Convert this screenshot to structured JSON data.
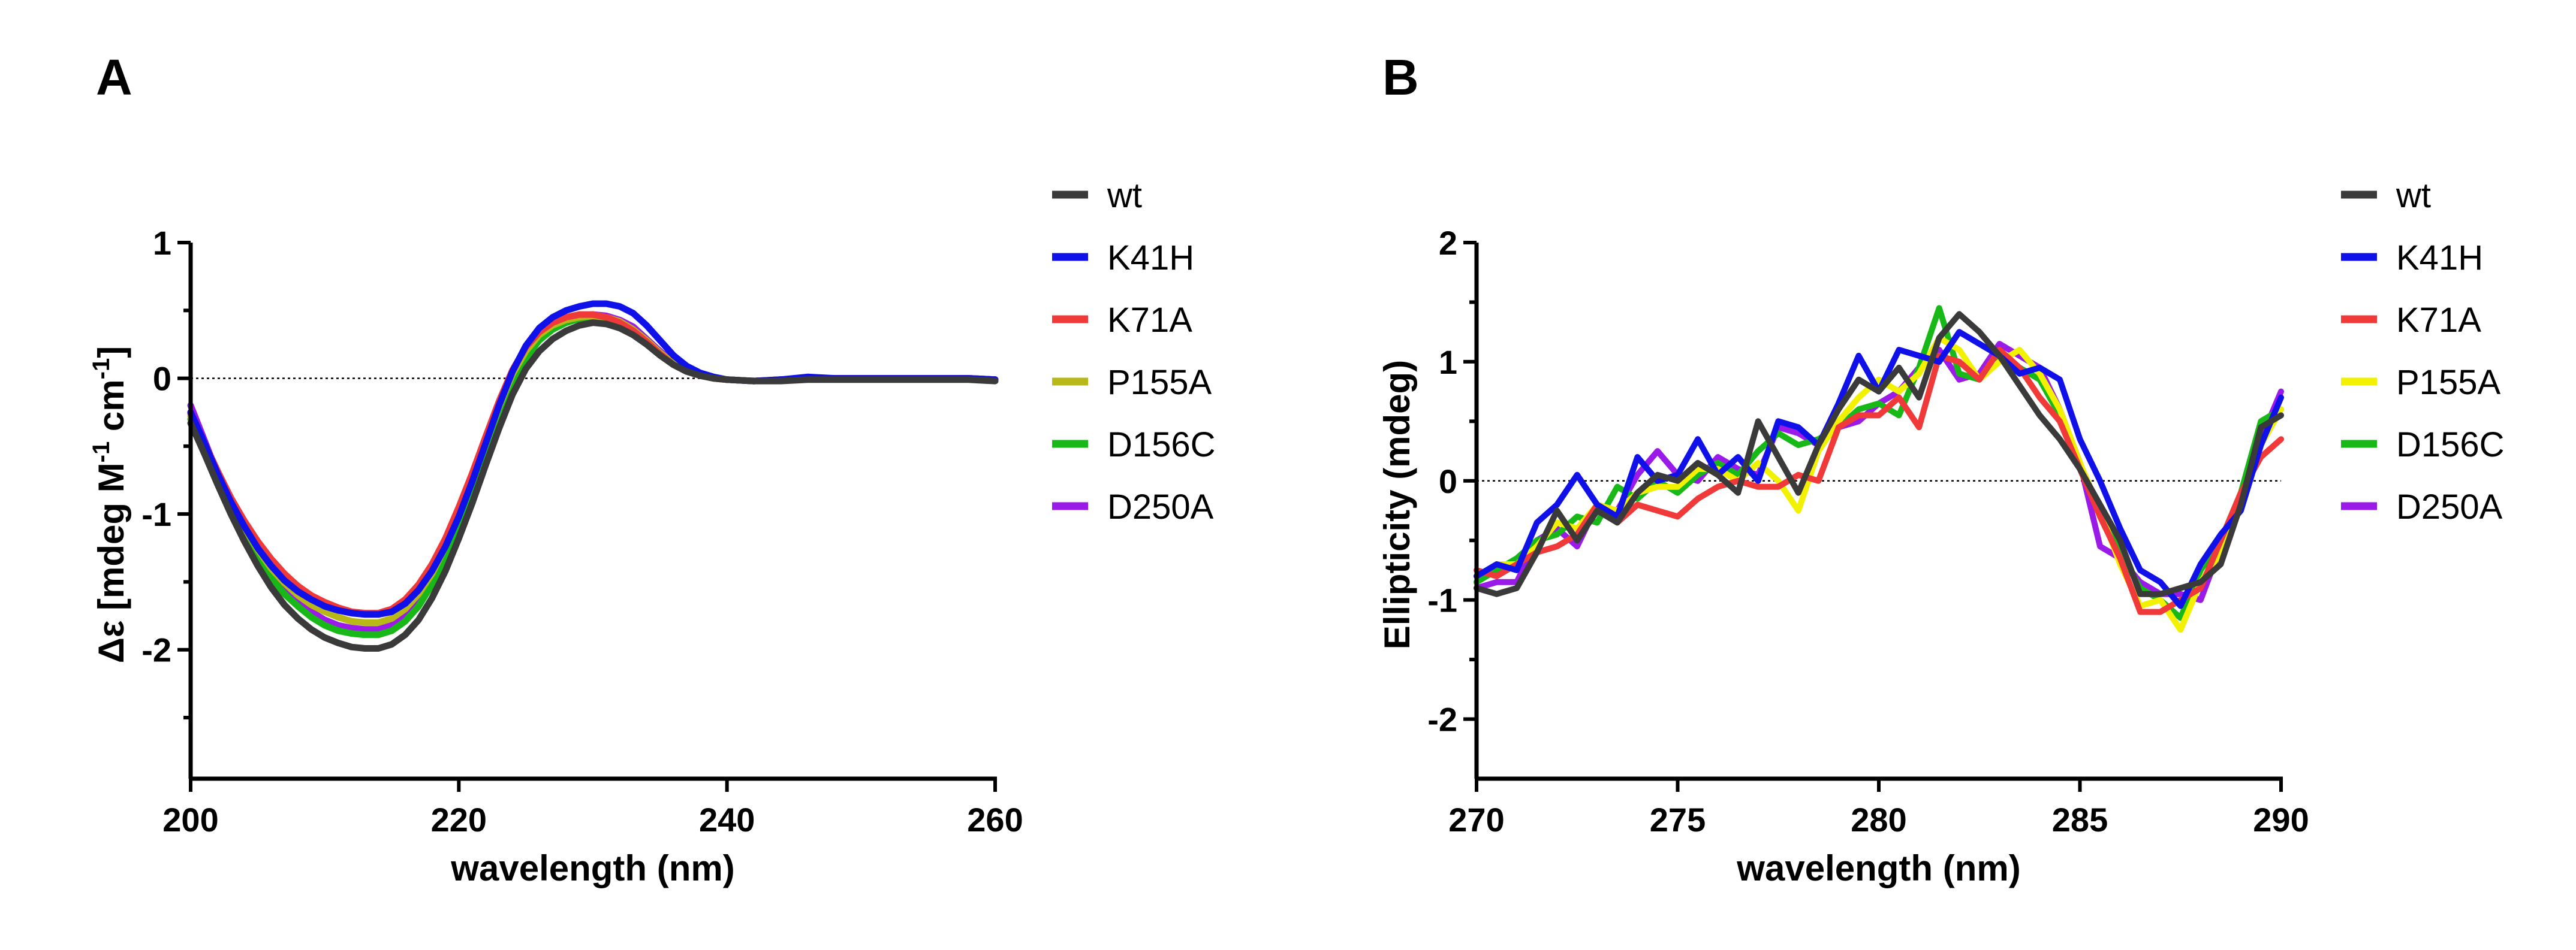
{
  "colors": {
    "wt": "#3a3a3a",
    "K41H": "#1010e8",
    "K71A": "#f03a3a",
    "P155A_A": "#b8b818",
    "P155A_B": "#f2f200",
    "D156C": "#18b818",
    "D250A": "#9a1ae8"
  },
  "chart_data": [
    {
      "panel": "A",
      "type": "line",
      "xlabel": "wavelength (nm)",
      "ylabel_parts": [
        "Δε [mdeg M",
        "-1",
        " cm",
        "-1",
        "]"
      ],
      "xlim": [
        200,
        260
      ],
      "ylim": [
        -2.95,
        1.0
      ],
      "xticks": [
        200,
        220,
        240,
        260
      ],
      "yticks": [
        1,
        0,
        -1,
        -2
      ],
      "ytick_labels": [
        "1",
        "0",
        "-1",
        "-2"
      ],
      "minor_yticks": [
        0.5,
        -0.5,
        -1.5,
        -2.5
      ],
      "reference_line_y": 0,
      "legend": [
        "wt",
        "K41H",
        "K71A",
        "P155A",
        "D156C",
        "D250A"
      ],
      "x": [
        200,
        201,
        202,
        203,
        204,
        205,
        206,
        207,
        208,
        209,
        210,
        211,
        212,
        213,
        214,
        215,
        216,
        217,
        218,
        219,
        220,
        221,
        222,
        223,
        224,
        225,
        226,
        227,
        228,
        229,
        230,
        231,
        232,
        233,
        234,
        235,
        236,
        237,
        238,
        239,
        240,
        242,
        244,
        246,
        248,
        250,
        252,
        254,
        256,
        258,
        260
      ],
      "series": [
        {
          "name": "wt",
          "color_key": "wt",
          "values": [
            -0.33,
            -0.55,
            -0.78,
            -1.0,
            -1.2,
            -1.38,
            -1.54,
            -1.67,
            -1.77,
            -1.85,
            -1.91,
            -1.95,
            -1.98,
            -1.99,
            -1.99,
            -1.96,
            -1.89,
            -1.78,
            -1.62,
            -1.42,
            -1.18,
            -0.92,
            -0.64,
            -0.37,
            -0.12,
            0.07,
            0.2,
            0.29,
            0.35,
            0.39,
            0.41,
            0.4,
            0.37,
            0.32,
            0.25,
            0.17,
            0.1,
            0.05,
            0.02,
            0.0,
            -0.01,
            -0.02,
            -0.02,
            -0.01,
            -0.01,
            -0.01,
            -0.01,
            -0.01,
            -0.01,
            -0.01,
            -0.02
          ]
        },
        {
          "name": "K41H",
          "color_key": "K41H",
          "values": [
            -0.25,
            -0.47,
            -0.7,
            -0.91,
            -1.09,
            -1.25,
            -1.38,
            -1.49,
            -1.57,
            -1.63,
            -1.68,
            -1.71,
            -1.73,
            -1.74,
            -1.74,
            -1.72,
            -1.66,
            -1.56,
            -1.42,
            -1.24,
            -1.02,
            -0.76,
            -0.48,
            -0.2,
            0.05,
            0.24,
            0.37,
            0.45,
            0.5,
            0.53,
            0.55,
            0.55,
            0.53,
            0.48,
            0.39,
            0.28,
            0.17,
            0.09,
            0.04,
            0.01,
            -0.01,
            -0.02,
            -0.01,
            0.01,
            0.0,
            0.0,
            0.0,
            0.0,
            0.0,
            0.0,
            -0.01
          ]
        },
        {
          "name": "K71A",
          "color_key": "K71A",
          "values": [
            -0.26,
            -0.47,
            -0.68,
            -0.88,
            -1.05,
            -1.2,
            -1.33,
            -1.44,
            -1.53,
            -1.6,
            -1.65,
            -1.69,
            -1.72,
            -1.73,
            -1.73,
            -1.7,
            -1.63,
            -1.52,
            -1.37,
            -1.18,
            -0.95,
            -0.7,
            -0.43,
            -0.17,
            0.06,
            0.23,
            0.34,
            0.41,
            0.45,
            0.47,
            0.47,
            0.45,
            0.41,
            0.35,
            0.27,
            0.18,
            0.1,
            0.05,
            0.02,
            0.0,
            -0.01,
            -0.02,
            -0.01,
            0.0,
            0.0,
            0.0,
            0.0,
            0.0,
            0.0,
            0.0,
            -0.01
          ]
        },
        {
          "name": "P155A",
          "color_key": "P155A_A",
          "values": [
            -0.28,
            -0.5,
            -0.72,
            -0.92,
            -1.1,
            -1.26,
            -1.4,
            -1.51,
            -1.6,
            -1.67,
            -1.72,
            -1.76,
            -1.79,
            -1.8,
            -1.8,
            -1.77,
            -1.7,
            -1.59,
            -1.44,
            -1.24,
            -1.01,
            -0.75,
            -0.48,
            -0.21,
            0.03,
            0.2,
            0.32,
            0.39,
            0.43,
            0.45,
            0.46,
            0.45,
            0.42,
            0.36,
            0.28,
            0.19,
            0.11,
            0.06,
            0.02,
            0.0,
            -0.01,
            -0.02,
            -0.01,
            0.0,
            0.0,
            0.0,
            0.0,
            0.0,
            0.0,
            0.0,
            -0.01
          ]
        },
        {
          "name": "D156C",
          "color_key": "D156C",
          "values": [
            -0.3,
            -0.52,
            -0.75,
            -0.96,
            -1.15,
            -1.32,
            -1.47,
            -1.59,
            -1.68,
            -1.76,
            -1.82,
            -1.86,
            -1.88,
            -1.89,
            -1.89,
            -1.86,
            -1.79,
            -1.68,
            -1.52,
            -1.32,
            -1.08,
            -0.82,
            -0.54,
            -0.27,
            -0.03,
            0.15,
            0.28,
            0.36,
            0.41,
            0.44,
            0.45,
            0.44,
            0.41,
            0.36,
            0.28,
            0.19,
            0.11,
            0.06,
            0.02,
            0.0,
            -0.01,
            -0.02,
            -0.01,
            0.0,
            0.0,
            0.0,
            0.0,
            0.0,
            0.0,
            0.0,
            -0.01
          ]
        },
        {
          "name": "D250A",
          "color_key": "D250A",
          "values": [
            -0.2,
            -0.45,
            -0.7,
            -0.93,
            -1.13,
            -1.3,
            -1.44,
            -1.56,
            -1.65,
            -1.72,
            -1.78,
            -1.82,
            -1.84,
            -1.85,
            -1.85,
            -1.82,
            -1.75,
            -1.64,
            -1.49,
            -1.29,
            -1.06,
            -0.8,
            -0.52,
            -0.25,
            -0.01,
            0.17,
            0.3,
            0.38,
            0.43,
            0.46,
            0.47,
            0.46,
            0.43,
            0.38,
            0.29,
            0.2,
            0.12,
            0.06,
            0.02,
            0.0,
            -0.01,
            -0.02,
            -0.01,
            0.0,
            0.0,
            0.0,
            0.0,
            0.0,
            0.0,
            0.0,
            -0.01
          ]
        }
      ]
    },
    {
      "panel": "B",
      "type": "line",
      "xlabel": "wavelength (nm)",
      "ylabel": "Ellipticity (mdeg)",
      "xlim": [
        270,
        290
      ],
      "ylim": [
        -2.5,
        2.0
      ],
      "xticks": [
        270,
        275,
        280,
        285,
        290
      ],
      "yticks": [
        2,
        1,
        0,
        -1,
        -2
      ],
      "ytick_labels": [
        "2",
        "1",
        "0",
        "-1",
        "-2"
      ],
      "minor_yticks": [
        1.5,
        0.5,
        -0.5,
        -1.5
      ],
      "reference_line_y": 0,
      "legend": [
        "wt",
        "K41H",
        "K71A",
        "P155A",
        "D156C",
        "D250A"
      ],
      "x": [
        270,
        270.5,
        271,
        271.5,
        272,
        272.5,
        273,
        273.5,
        274,
        274.5,
        275,
        275.5,
        276,
        276.5,
        277,
        277.5,
        278,
        278.5,
        279,
        279.5,
        280,
        280.5,
        281,
        281.5,
        282,
        282.5,
        283,
        283.5,
        284,
        284.5,
        285,
        285.5,
        286,
        286.5,
        287,
        287.5,
        288,
        288.5,
        289,
        289.5,
        290
      ],
      "series": [
        {
          "name": "wt",
          "color_key": "wt",
          "values": [
            -0.9,
            -0.95,
            -0.9,
            -0.6,
            -0.25,
            -0.5,
            -0.25,
            -0.35,
            -0.1,
            0.05,
            0.0,
            0.15,
            0.05,
            -0.1,
            0.5,
            0.2,
            -0.1,
            0.3,
            0.6,
            0.85,
            0.75,
            0.95,
            0.7,
            1.2,
            1.4,
            1.25,
            1.05,
            0.8,
            0.55,
            0.35,
            0.1,
            -0.2,
            -0.5,
            -0.95,
            -0.95,
            -0.9,
            -0.85,
            -0.7,
            -0.2,
            0.45,
            0.55
          ]
        },
        {
          "name": "K41H",
          "color_key": "K41H",
          "values": [
            -0.8,
            -0.7,
            -0.75,
            -0.35,
            -0.2,
            0.05,
            -0.2,
            -0.3,
            0.2,
            0.0,
            0.05,
            0.35,
            0.05,
            0.2,
            0.0,
            0.5,
            0.45,
            0.3,
            0.65,
            1.05,
            0.75,
            1.1,
            1.05,
            1.0,
            1.25,
            1.15,
            1.05,
            0.9,
            0.95,
            0.85,
            0.35,
            0.0,
            -0.4,
            -0.75,
            -0.85,
            -1.05,
            -0.7,
            -0.45,
            -0.25,
            0.3,
            0.7
          ]
        },
        {
          "name": "K71A",
          "color_key": "K71A",
          "values": [
            -0.75,
            -0.8,
            -0.7,
            -0.6,
            -0.55,
            -0.45,
            -0.2,
            -0.35,
            -0.2,
            -0.25,
            -0.3,
            -0.15,
            -0.05,
            0.0,
            -0.05,
            -0.05,
            0.05,
            0.0,
            0.45,
            0.55,
            0.55,
            0.7,
            0.45,
            1.05,
            1.0,
            0.85,
            1.1,
            0.95,
            0.7,
            0.5,
            0.1,
            -0.3,
            -0.65,
            -1.1,
            -1.1,
            -1.0,
            -0.9,
            -0.5,
            -0.1,
            0.2,
            0.35
          ]
        },
        {
          "name": "P155A",
          "color_key": "P155A_B",
          "values": [
            -0.8,
            -0.7,
            -0.7,
            -0.55,
            -0.35,
            -0.4,
            -0.2,
            -0.25,
            -0.1,
            -0.05,
            -0.05,
            0.1,
            0.1,
            0.0,
            0.15,
            0.0,
            -0.25,
            0.25,
            0.5,
            0.7,
            0.85,
            0.75,
            0.9,
            1.2,
            1.1,
            0.85,
            1.0,
            1.1,
            0.9,
            0.6,
            0.15,
            -0.25,
            -0.7,
            -1.05,
            -1.0,
            -1.25,
            -0.85,
            -0.6,
            -0.2,
            0.3,
            0.6
          ]
        },
        {
          "name": "D156C",
          "color_key": "D156C",
          "values": [
            -0.85,
            -0.75,
            -0.65,
            -0.5,
            -0.45,
            -0.3,
            -0.35,
            -0.05,
            -0.15,
            0.0,
            -0.1,
            0.05,
            0.15,
            0.05,
            0.25,
            0.4,
            0.3,
            0.35,
            0.45,
            0.6,
            0.65,
            0.55,
            0.95,
            1.45,
            0.9,
            0.85,
            1.05,
            0.95,
            0.85,
            0.55,
            0.15,
            -0.3,
            -0.6,
            -0.9,
            -1.0,
            -1.15,
            -0.75,
            -0.5,
            -0.1,
            0.5,
            0.6
          ]
        },
        {
          "name": "D250A",
          "color_key": "D250A",
          "values": [
            -0.9,
            -0.85,
            -0.85,
            -0.5,
            -0.4,
            -0.55,
            -0.2,
            -0.25,
            0.05,
            0.25,
            0.05,
            0.0,
            0.2,
            0.1,
            0.05,
            0.45,
            0.4,
            0.3,
            0.45,
            0.5,
            0.65,
            0.75,
            0.95,
            1.1,
            0.85,
            0.9,
            1.15,
            1.05,
            0.95,
            0.6,
            0.15,
            -0.55,
            -0.65,
            -0.85,
            -0.95,
            -0.95,
            -1.0,
            -0.55,
            -0.15,
            0.35,
            0.75
          ]
        }
      ]
    }
  ]
}
